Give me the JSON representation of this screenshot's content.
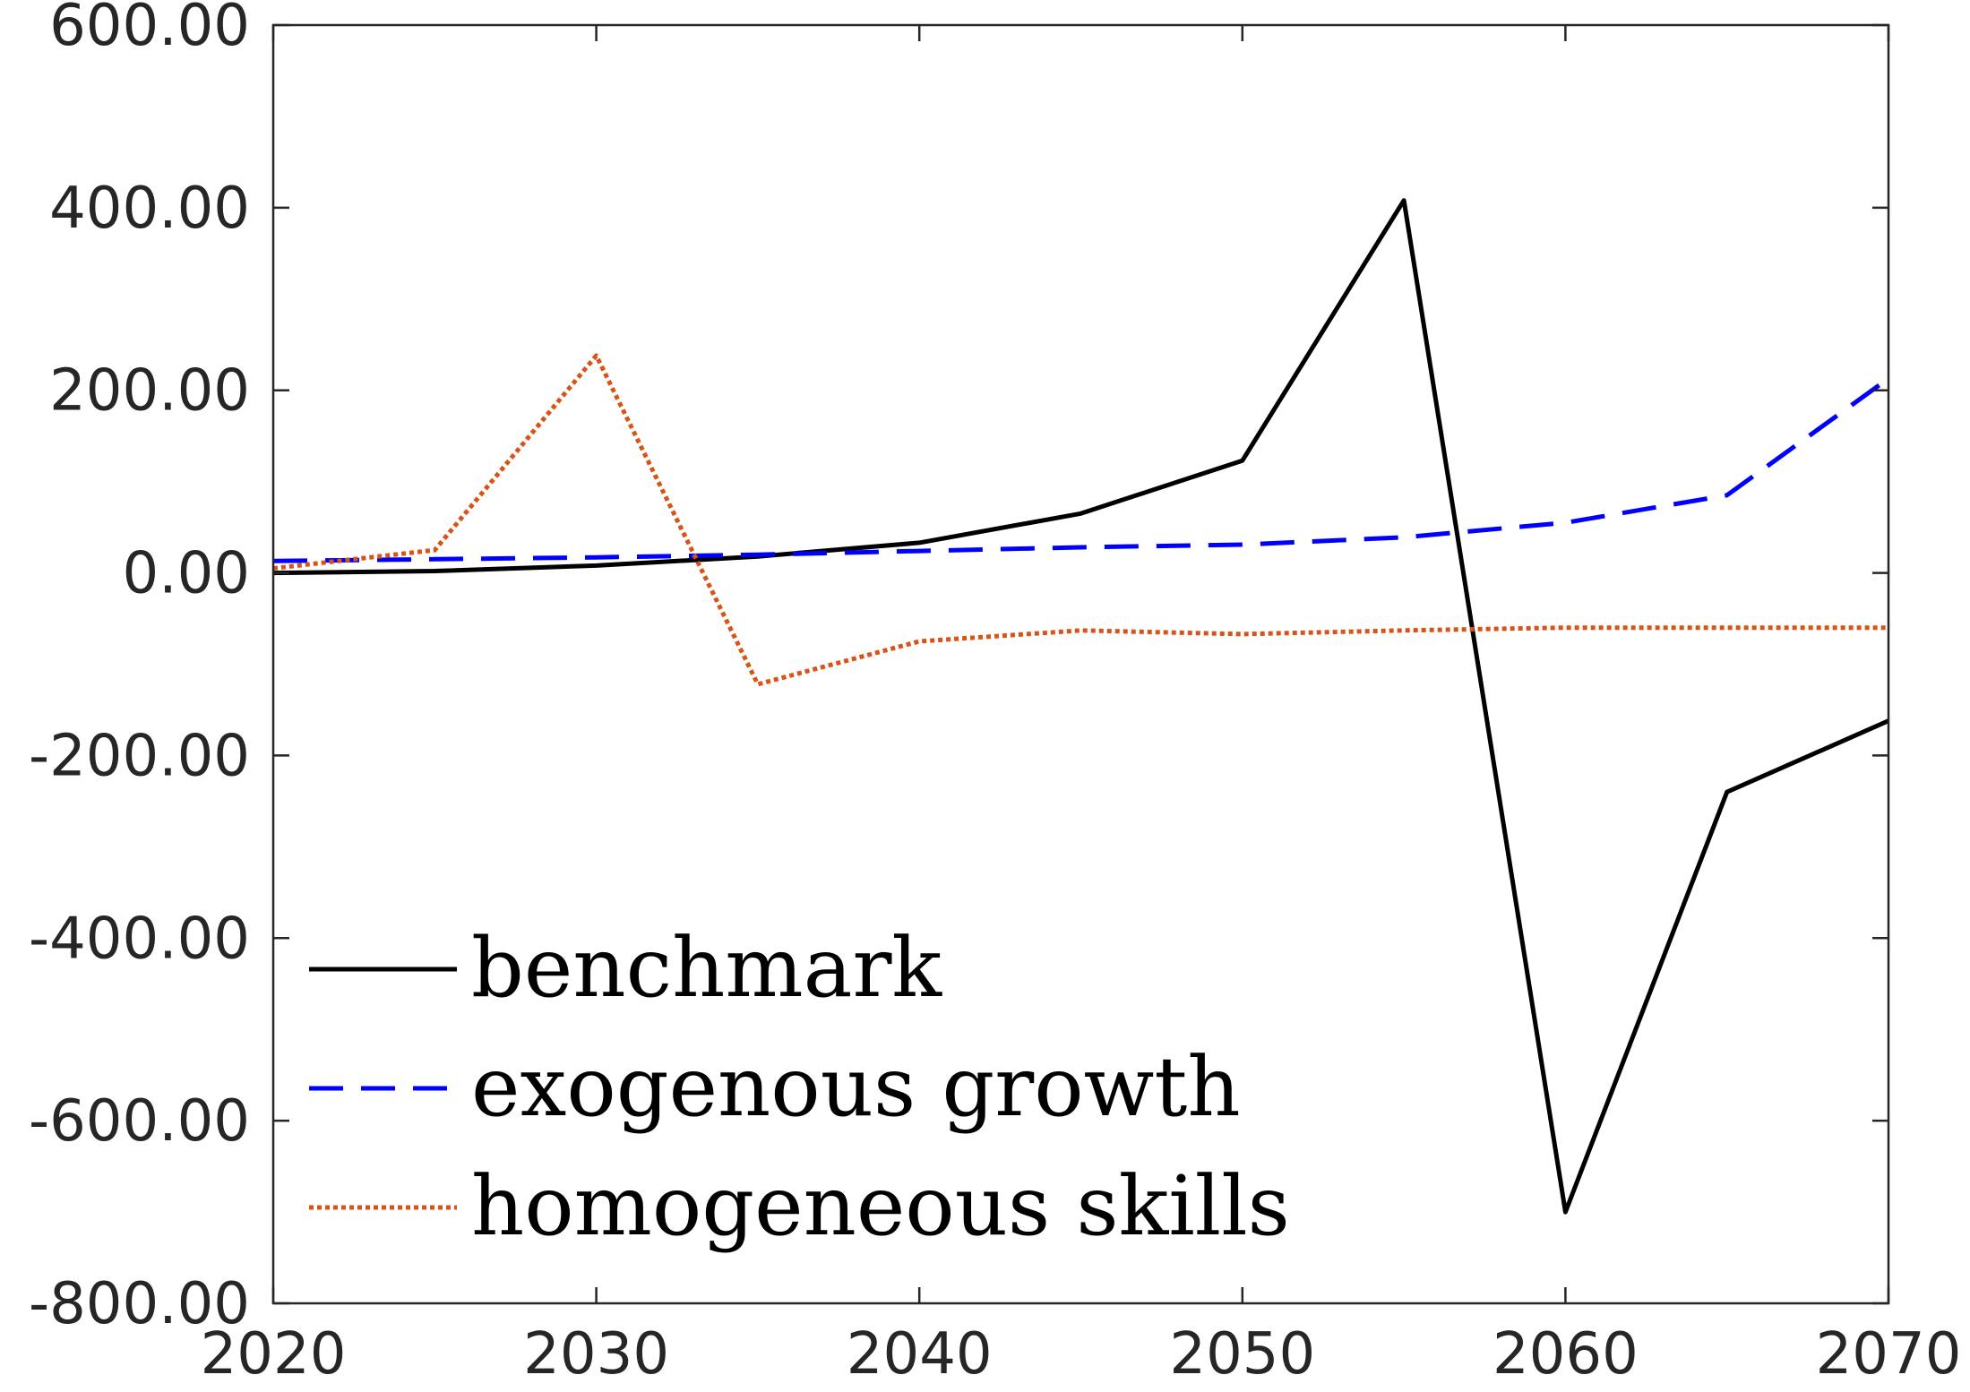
{
  "chart_data": {
    "type": "line",
    "title": "",
    "xlabel": "",
    "ylabel": "",
    "xlim": [
      2020,
      2070
    ],
    "ylim": [
      -800,
      600
    ],
    "x_ticks": [
      "2020",
      "2030",
      "2040",
      "2050",
      "2060",
      "2070"
    ],
    "y_ticks": [
      "600.00",
      "400.00",
      "200.00",
      "0.00",
      "-200.00",
      "-400.00",
      "-600.00",
      "-800.00"
    ],
    "x_tick_values": [
      2020,
      2030,
      2040,
      2050,
      2060,
      2070
    ],
    "y_tick_values": [
      600,
      400,
      200,
      0,
      -200,
      -400,
      -600,
      -800
    ],
    "grid": false,
    "legend_position": "bottom-left",
    "x": [
      2020,
      2025,
      2030,
      2035,
      2040,
      2045,
      2050,
      2055,
      2060,
      2065,
      2070
    ],
    "series": [
      {
        "name": "benchmark",
        "color": "#000000",
        "style": "solid",
        "values": [
          0,
          2,
          8,
          18,
          33,
          65,
          123,
          408,
          -700,
          -240,
          -162
        ]
      },
      {
        "name": "exogenous growth",
        "color": "#0000ff",
        "style": "dashed",
        "values": [
          13,
          15,
          17,
          20,
          24,
          28,
          31,
          39,
          55,
          85,
          213
        ]
      },
      {
        "name": "homogeneous skills",
        "color": "#d95319",
        "style": "dotted",
        "values": [
          5,
          25,
          238,
          -122,
          -75,
          -63,
          -67,
          -63,
          -60,
          -60,
          -60
        ]
      }
    ]
  }
}
